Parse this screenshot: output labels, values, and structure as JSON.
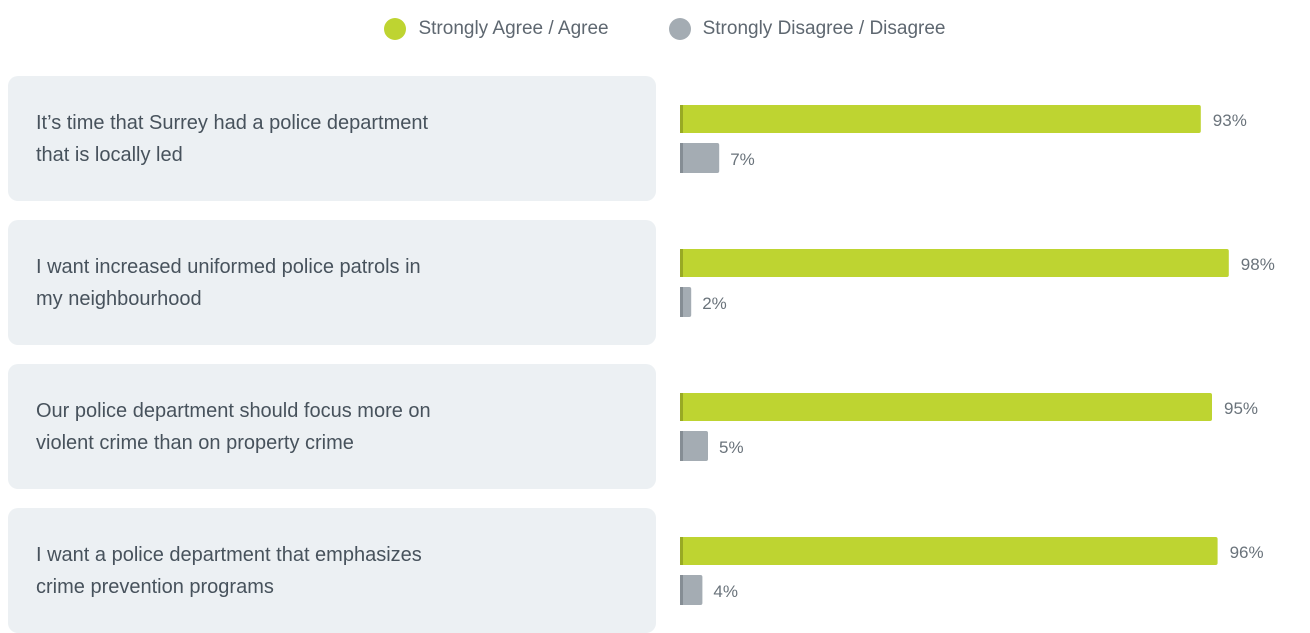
{
  "legend": {
    "agree_label": "Strongly Agree / Agree",
    "disagree_label": "Strongly Disagree / Disagree"
  },
  "colors": {
    "agree": "#bed431",
    "agree_edge": "#98aa24",
    "disagree": "#a4acb3",
    "disagree_edge": "#858d94",
    "panel": "#ecf0f3"
  },
  "chart_data": {
    "type": "bar",
    "orientation": "horizontal",
    "xlim": [
      0,
      100
    ],
    "categories": [
      "It’s time that Surrey had a police department\nthat is locally led",
      "I want increased uniformed police patrols in\nmy neighbourhood",
      "Our police department should focus more on\nviolent crime than on property crime",
      "I want a police department that emphasizes\ncrime prevention programs"
    ],
    "series": [
      {
        "name": "Strongly Agree / Agree",
        "values": [
          93,
          98,
          95,
          96
        ]
      },
      {
        "name": "Strongly Disagree / Disagree",
        "values": [
          7,
          2,
          5,
          4
        ]
      }
    ],
    "value_labels": [
      [
        "93%",
        "7%"
      ],
      [
        "98%",
        "2%"
      ],
      [
        "95%",
        "5%"
      ],
      [
        "96%",
        "4%"
      ]
    ],
    "legend_position": "top-center",
    "grid": false
  }
}
